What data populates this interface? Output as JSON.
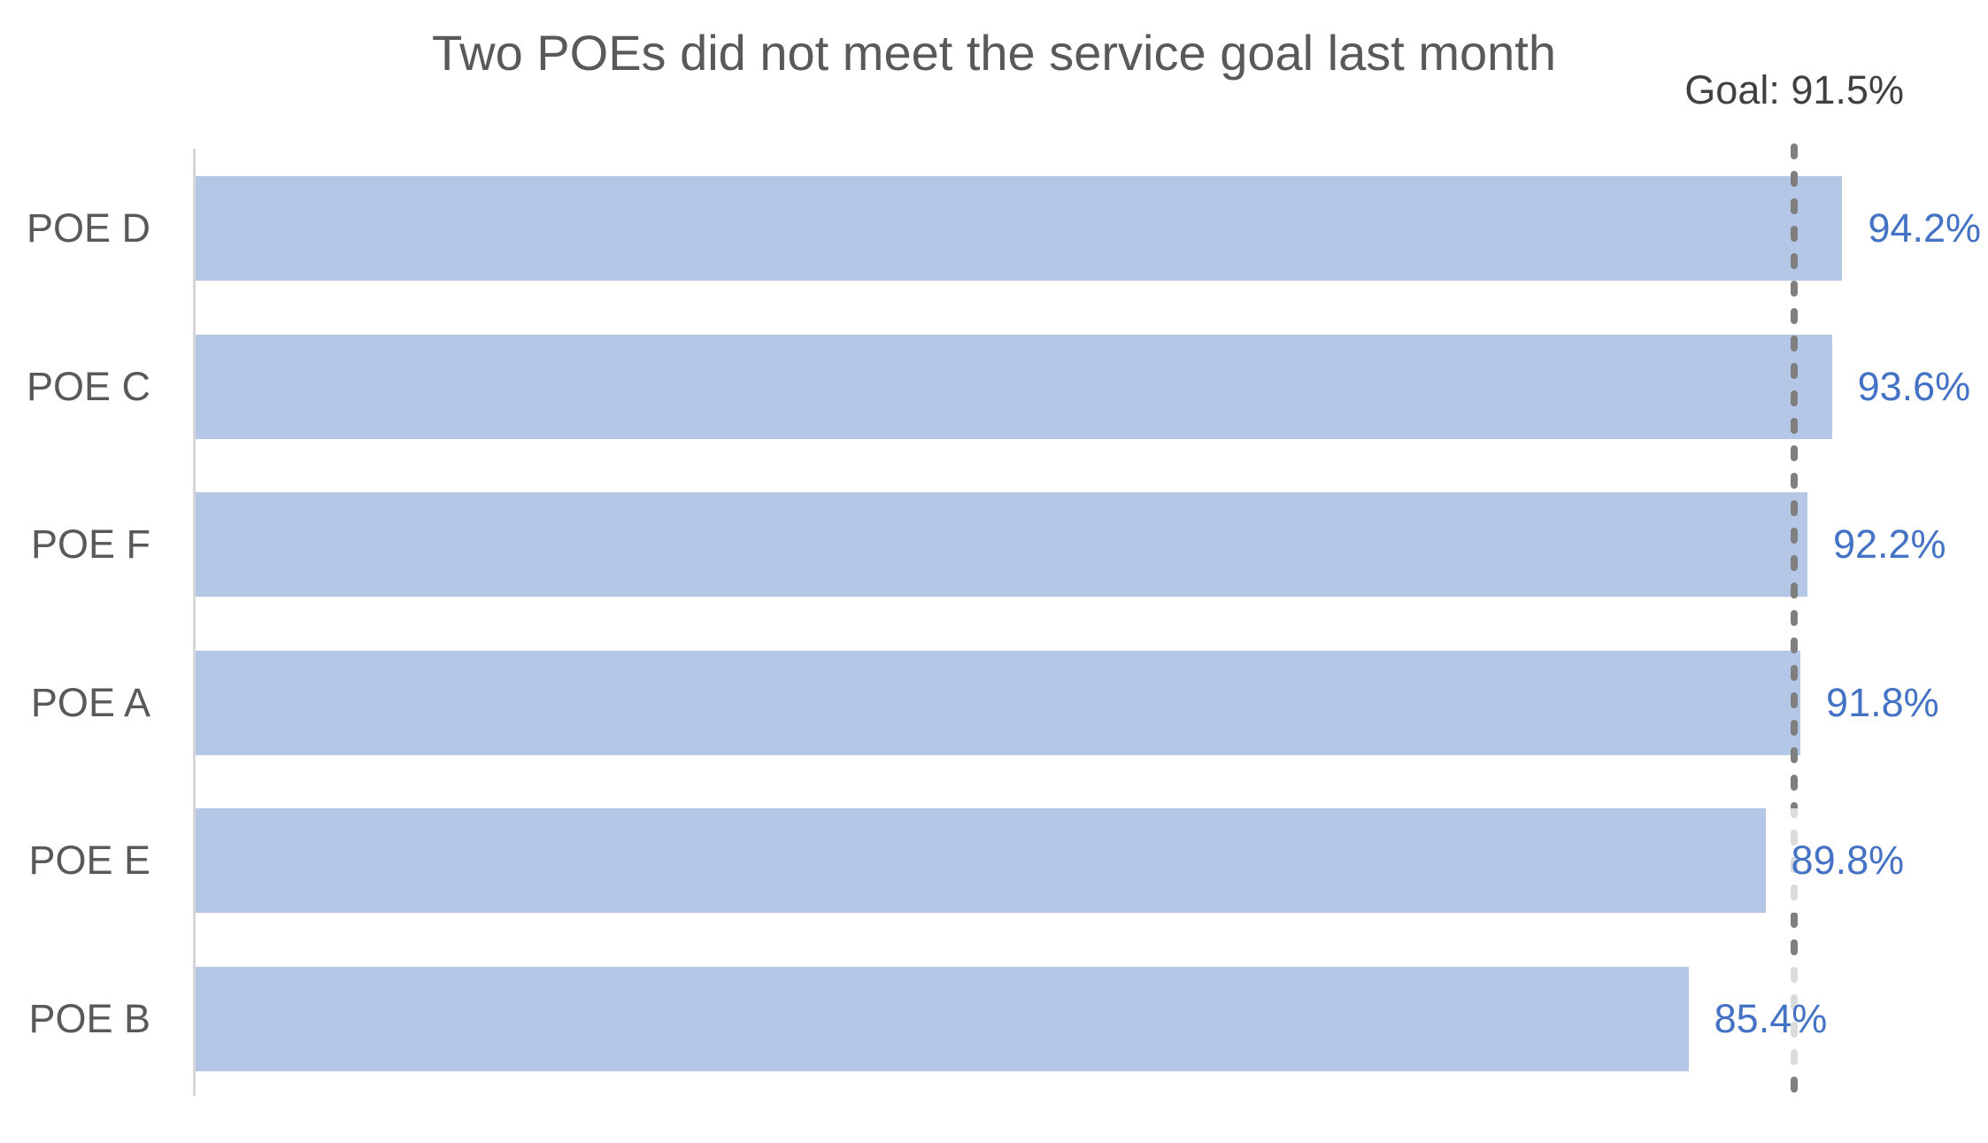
{
  "chart_data": {
    "type": "bar",
    "orientation": "horizontal",
    "title": "Two POEs did not meet the service goal last month",
    "goal_label": "Goal: 91.5%",
    "goal_value": 91.5,
    "categories": [
      "POE D",
      "POE C",
      "POE F",
      "POE A",
      "POE E",
      "POE B"
    ],
    "values": [
      94.2,
      93.6,
      92.2,
      91.8,
      89.8,
      85.4
    ],
    "value_labels": [
      "94.2%",
      "93.6%",
      "92.2%",
      "91.8%",
      "89.8%",
      "85.4%"
    ],
    "xlim": [
      0,
      102.5
    ],
    "grid": false,
    "legend": "none",
    "xlabel": "",
    "ylabel": "",
    "colors": {
      "bar_fill": "#B4C7E7",
      "value_text": "#4472C4",
      "title_text": "#595959",
      "category_text": "#595959",
      "goal_text": "#404040",
      "goal_line": "#7F7F7F",
      "axis_line": "#D6D6D6"
    }
  }
}
